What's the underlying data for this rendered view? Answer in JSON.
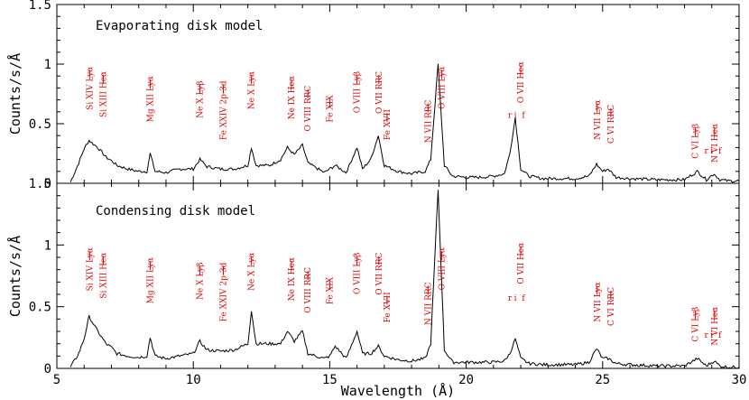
{
  "chart_data": [
    {
      "type": "line",
      "title": "Evaporating disk model",
      "xlabel": "",
      "ylabel": "Counts/s/Å",
      "xlim": [
        5,
        30
      ],
      "ylim": [
        0,
        1.5
      ],
      "xticks": [
        5,
        10,
        15,
        20,
        25,
        30
      ],
      "yticks": [
        "0",
        "0.5",
        "1",
        "1.5"
      ],
      "series": [
        {
          "x": [
            5.5,
            5.8,
            6.0,
            6.18,
            6.5,
            6.8,
            7.0,
            7.2,
            7.6,
            8.0,
            8.3,
            8.42,
            8.6,
            9.0,
            9.5,
            10.0,
            10.24,
            10.5,
            11.0,
            11.5,
            12.0,
            12.13,
            12.3,
            12.8,
            13.2,
            13.45,
            13.7,
            14.0,
            14.2,
            14.5,
            14.8,
            15.0,
            15.2,
            15.6,
            16.0,
            16.2,
            16.5,
            16.78,
            17.0,
            17.5,
            18.0,
            18.5,
            18.7,
            18.97,
            19.2,
            19.5,
            20.0,
            20.5,
            21.0,
            21.4,
            21.6,
            21.8,
            22.0,
            22.3,
            22.8,
            23.5,
            24.0,
            24.5,
            24.78,
            25.0,
            25.2,
            25.5,
            26.0,
            27.0,
            28.0,
            28.47,
            28.8,
            29.08,
            29.3,
            29.6,
            30.0
          ],
          "y": [
            0.01,
            0.17,
            0.29,
            0.36,
            0.3,
            0.22,
            0.19,
            0.15,
            0.12,
            0.1,
            0.1,
            0.25,
            0.1,
            0.09,
            0.12,
            0.12,
            0.2,
            0.14,
            0.12,
            0.12,
            0.15,
            0.3,
            0.15,
            0.15,
            0.2,
            0.3,
            0.24,
            0.32,
            0.17,
            0.13,
            0.09,
            0.12,
            0.15,
            0.09,
            0.3,
            0.12,
            0.2,
            0.4,
            0.15,
            0.1,
            0.08,
            0.1,
            0.2,
            1.0,
            0.15,
            0.06,
            0.05,
            0.05,
            0.06,
            0.08,
            0.25,
            0.55,
            0.12,
            0.06,
            0.04,
            0.04,
            0.04,
            0.06,
            0.16,
            0.1,
            0.12,
            0.05,
            0.04,
            0.03,
            0.03,
            0.1,
            0.03,
            0.08,
            0.03,
            0.02,
            0.02
          ]
        }
      ]
    },
    {
      "type": "line",
      "title": "Condensing disk model",
      "xlabel": "Wavelength (Å)",
      "ylabel": "Counts/s/Å",
      "xlim": [
        5,
        30
      ],
      "ylim": [
        0,
        1.5
      ],
      "xticks": [
        5,
        10,
        15,
        20,
        25,
        30
      ],
      "yticks": [
        "0",
        "0.5",
        "1",
        "1.5"
      ],
      "series": [
        {
          "x": [
            5.5,
            5.8,
            6.0,
            6.18,
            6.5,
            6.8,
            7.0,
            7.2,
            7.6,
            8.0,
            8.3,
            8.42,
            8.6,
            9.0,
            9.5,
            10.0,
            10.24,
            10.5,
            11.0,
            11.5,
            12.0,
            12.13,
            12.3,
            12.8,
            13.2,
            13.45,
            13.7,
            14.0,
            14.2,
            14.5,
            14.8,
            15.0,
            15.2,
            15.6,
            16.0,
            16.2,
            16.5,
            16.78,
            17.0,
            17.5,
            18.0,
            18.5,
            18.7,
            18.97,
            19.2,
            19.5,
            20.0,
            20.5,
            21.0,
            21.4,
            21.6,
            21.8,
            22.0,
            22.3,
            22.8,
            23.5,
            24.0,
            24.5,
            24.78,
            25.0,
            25.2,
            25.5,
            26.0,
            27.0,
            28.0,
            28.47,
            28.8,
            29.08,
            29.3,
            29.6,
            30.0
          ],
          "y": [
            0.01,
            0.12,
            0.24,
            0.42,
            0.3,
            0.2,
            0.17,
            0.12,
            0.1,
            0.09,
            0.1,
            0.25,
            0.1,
            0.08,
            0.1,
            0.12,
            0.22,
            0.15,
            0.14,
            0.15,
            0.2,
            0.47,
            0.2,
            0.2,
            0.2,
            0.3,
            0.22,
            0.3,
            0.12,
            0.1,
            0.08,
            0.1,
            0.18,
            0.08,
            0.3,
            0.12,
            0.12,
            0.18,
            0.1,
            0.07,
            0.06,
            0.08,
            0.2,
            1.45,
            0.15,
            0.05,
            0.05,
            0.05,
            0.05,
            0.06,
            0.12,
            0.24,
            0.08,
            0.04,
            0.03,
            0.03,
            0.03,
            0.05,
            0.16,
            0.08,
            0.08,
            0.04,
            0.03,
            0.02,
            0.02,
            0.08,
            0.02,
            0.06,
            0.02,
            0.01,
            0.01
          ]
        }
      ]
    }
  ],
  "line_labels": [
    {
      "text": "Si XIV Lyα",
      "x": 6.2
    },
    {
      "text": "Si XIII Heα",
      "x": 6.7
    },
    {
      "text": "Mg XII Lyα",
      "x": 8.42
    },
    {
      "text": "Ne X Lyβ",
      "x": 10.24
    },
    {
      "text": "Fe XXIV 2p-3d",
      "x": 11.1
    },
    {
      "text": "Ne X Lyα",
      "x": 12.13
    },
    {
      "text": "Ne IX Heα",
      "x": 13.6
    },
    {
      "text": "O VIII RRC",
      "x": 14.2
    },
    {
      "text": "Fe XIX",
      "x": 15.0
    },
    {
      "text": "O VIII Lyβ",
      "x": 16.0
    },
    {
      "text": "Fe XVII",
      "x": 17.1
    },
    {
      "text": "O VII RRC",
      "x": 16.8
    },
    {
      "text": "N VII RRC",
      "x": 18.6
    },
    {
      "text": "O VIII Lyα",
      "x": 19.1
    },
    {
      "text": "O VII Heα",
      "x": 22.0
    },
    {
      "text": "N VII Lyα",
      "x": 24.8
    },
    {
      "text": "C VI RRC",
      "x": 25.3
    },
    {
      "text": "C VI Lyβ",
      "x": 28.4
    },
    {
      "text": "N VI Heα",
      "x": 29.1
    }
  ],
  "line_labels_small": [
    "r",
    "i",
    "f",
    "r",
    "i",
    "f"
  ],
  "colors": {
    "annotation": "#e00000",
    "axes": "#000000"
  }
}
